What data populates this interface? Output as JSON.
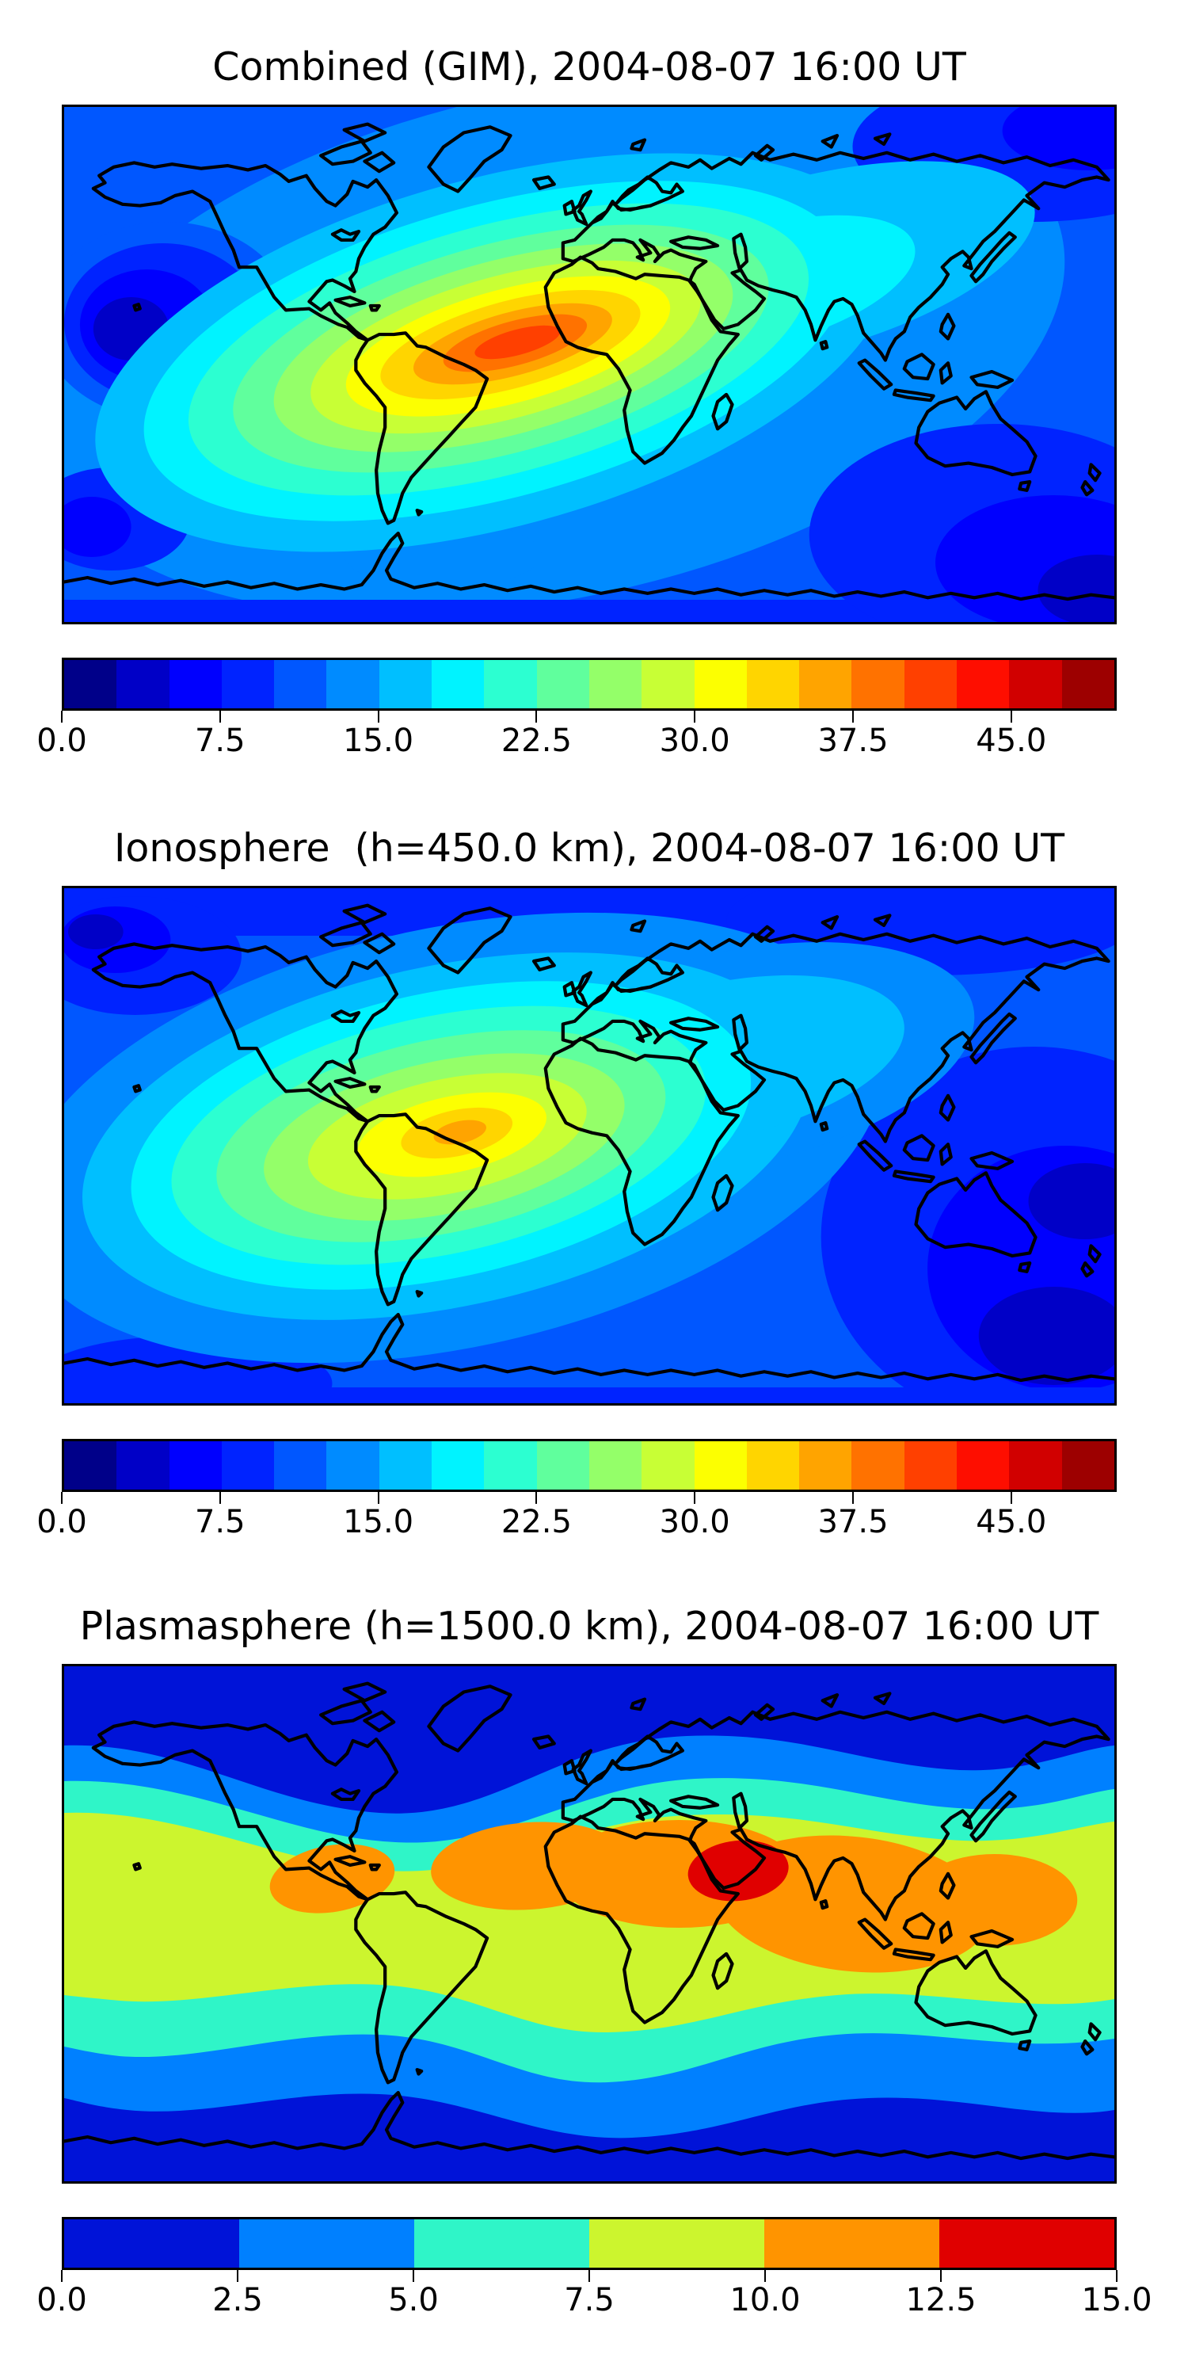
{
  "panels": [
    {
      "title": "Combined (GIM), 2004-08-07 16:00 UT",
      "colorbar": {
        "min": 0.0,
        "max": 50.0,
        "n_bands": 20,
        "tick_values": [
          0.0,
          7.5,
          15.0,
          22.5,
          30.0,
          37.5,
          45.0
        ],
        "tick_labels": [
          "0.0",
          "7.5",
          "15.0",
          "22.5",
          "30.0",
          "37.5",
          "45.0"
        ],
        "colors": [
          "#000089",
          "#0000c7",
          "#0000fe",
          "#0023ff",
          "#0057ff",
          "#008bff",
          "#00bfff",
          "#00f3ff",
          "#2cffd1",
          "#60ff9d",
          "#94ff69",
          "#c8ff35",
          "#fcff01",
          "#ffd500",
          "#ffa400",
          "#ff7200",
          "#ff4000",
          "#fe0e00",
          "#d10000",
          "#9d0000"
        ]
      }
    },
    {
      "title": "Ionosphere  (h=450.0 km), 2004-08-07 16:00 UT",
      "colorbar": {
        "min": 0.0,
        "max": 50.0,
        "n_bands": 20,
        "tick_values": [
          0.0,
          7.5,
          15.0,
          22.5,
          30.0,
          37.5,
          45.0
        ],
        "tick_labels": [
          "0.0",
          "7.5",
          "15.0",
          "22.5",
          "30.0",
          "37.5",
          "45.0"
        ],
        "colors": [
          "#000089",
          "#0000c7",
          "#0000fe",
          "#0023ff",
          "#0057ff",
          "#008bff",
          "#00bfff",
          "#00f3ff",
          "#2cffd1",
          "#60ff9d",
          "#94ff69",
          "#c8ff35",
          "#fcff01",
          "#ffd500",
          "#ffa400",
          "#ff7200",
          "#ff4000",
          "#fe0e00",
          "#d10000",
          "#9d0000"
        ]
      }
    },
    {
      "title": "Plasmasphere (h=1500.0 km), 2004-08-07 16:00 UT",
      "colorbar": {
        "min": 0.0,
        "max": 15.0,
        "n_bands": 6,
        "tick_values": [
          0.0,
          2.5,
          5.0,
          7.5,
          10.0,
          12.5,
          15.0
        ],
        "tick_labels": [
          "0.0",
          "2.5",
          "5.0",
          "7.5",
          "10.0",
          "12.5",
          "15.0"
        ],
        "colors": [
          "#0013d8",
          "#0080ff",
          "#2ff5c8",
          "#ccf52e",
          "#ff9400",
          "#e00000"
        ]
      }
    }
  ],
  "chart_data": [
    {
      "type": "heatmap",
      "title": "Combined (GIM), 2004-08-07 16:00 UT",
      "projection": "equirectangular",
      "lon_range": [
        -180,
        180
      ],
      "lat_range": [
        -90,
        90
      ],
      "colormap": "jet",
      "levels": {
        "min": 0.0,
        "max": 50.0,
        "step": 2.5
      },
      "colorbar_ticks": [
        0.0,
        7.5,
        15.0,
        22.5,
        30.0,
        37.5,
        45.0
      ],
      "coastlines": true,
      "legend_position": "bottom",
      "peak_estimate": {
        "value_band": [
          40.0,
          42.5
        ],
        "lon_approx": -15,
        "lat_approx": 5
      },
      "low_estimates": [
        {
          "value_band": [
            2.5,
            5.0
          ],
          "region": "north-pacific",
          "lon_approx": -150,
          "lat_approx": 15
        },
        {
          "value_band": [
            2.5,
            5.0
          ],
          "region": "south-east-indian-ocean",
          "lon_approx": 150,
          "lat_approx": -65
        }
      ]
    },
    {
      "type": "heatmap",
      "title": "Ionosphere  (h=450.0 km), 2004-08-07 16:00 UT",
      "projection": "equirectangular",
      "lon_range": [
        -180,
        180
      ],
      "lat_range": [
        -90,
        90
      ],
      "colormap": "jet",
      "levels": {
        "min": 0.0,
        "max": 50.0,
        "step": 2.5
      },
      "colorbar_ticks": [
        0.0,
        7.5,
        15.0,
        22.5,
        30.0,
        37.5,
        45.0
      ],
      "coastlines": true,
      "legend_position": "bottom",
      "peak_estimate": {
        "value_band": [
          35.0,
          37.5
        ],
        "lon_approx": -50,
        "lat_approx": 5
      },
      "low_estimates": [
        {
          "value_band": [
            0.0,
            2.5
          ],
          "region": "south-east-indian-ocean",
          "lon_approx": 140,
          "lat_approx": -55
        },
        {
          "value_band": [
            0.0,
            2.5
          ],
          "region": "north-pacific",
          "lon_approx": -160,
          "lat_approx": 70
        }
      ]
    },
    {
      "type": "heatmap",
      "title": "Plasmasphere (h=1500.0 km), 2004-08-07 16:00 UT",
      "projection": "equirectangular",
      "lon_range": [
        -180,
        180
      ],
      "lat_range": [
        -90,
        90
      ],
      "colormap": "jet",
      "levels": {
        "min": 0.0,
        "max": 15.0,
        "step": 2.5
      },
      "colorbar_ticks": [
        0.0,
        2.5,
        5.0,
        7.5,
        10.0,
        12.5,
        15.0
      ],
      "coastlines": true,
      "legend_position": "bottom",
      "peak_estimate": {
        "value_band": [
          12.5,
          15.0
        ],
        "lon_approx": 51,
        "lat_approx": 18
      },
      "structure": "zonal bands peaking near magnetic equator, minima at high latitudes",
      "secondary_maxima": [
        {
          "value_band": [
            10.0,
            12.5
          ],
          "region": "south-america",
          "lon_approx": -62,
          "lat_approx": -8
        },
        {
          "value_band": [
            10.0,
            12.5
          ],
          "region": "africa-to-southeast-asia",
          "lon_approx": 20,
          "lat_approx": 8
        }
      ]
    }
  ]
}
